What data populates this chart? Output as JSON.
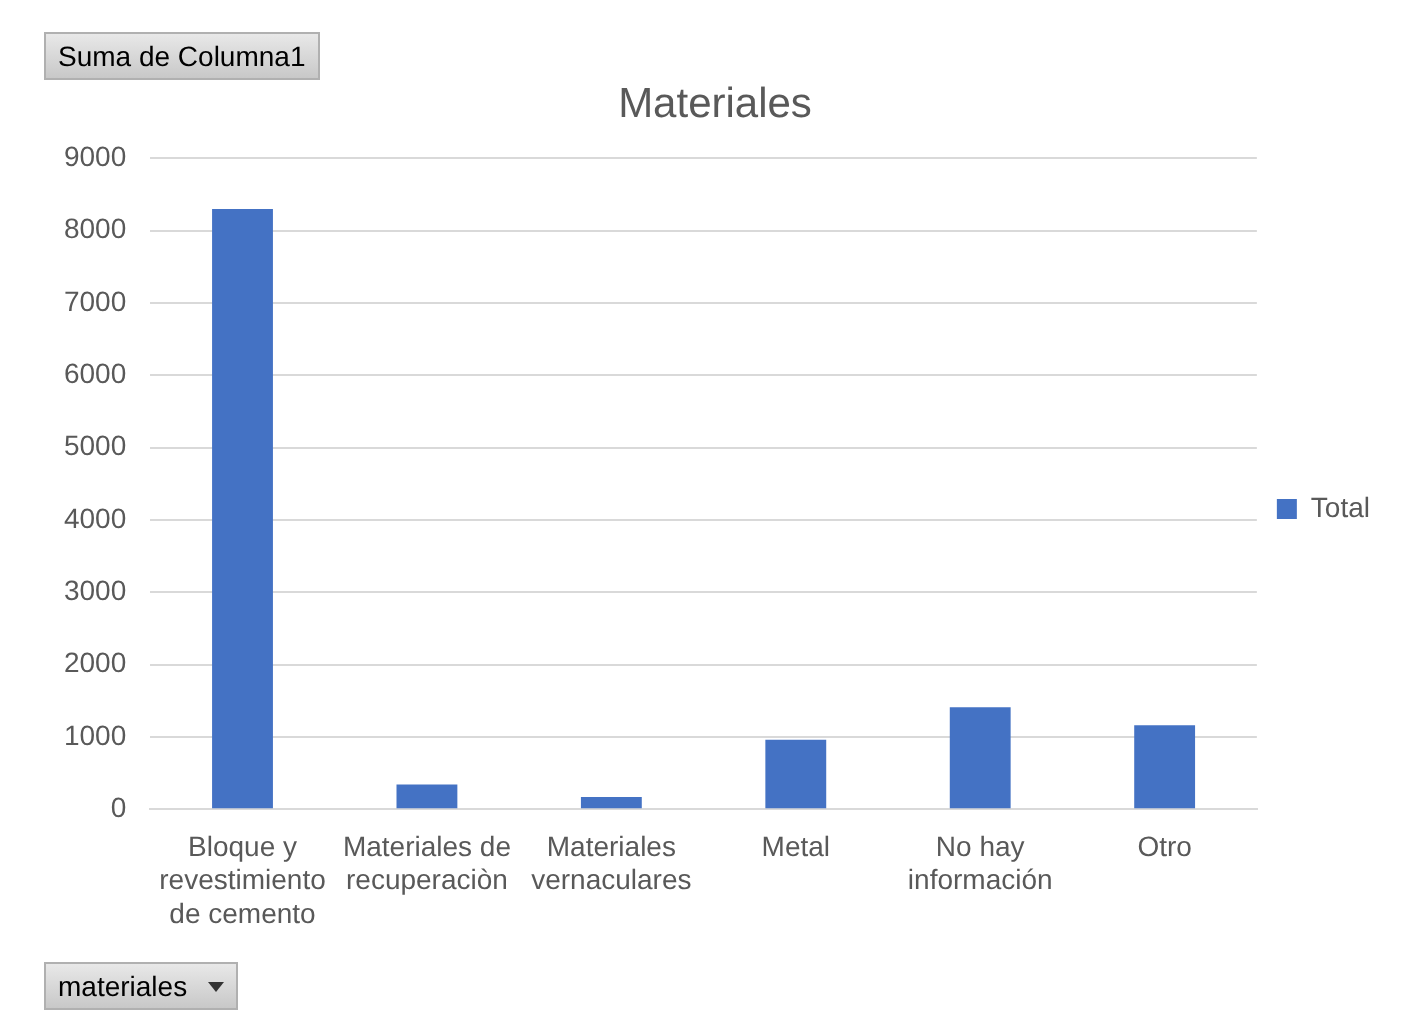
{
  "chart_data": {
    "type": "bar",
    "title": "Materiales",
    "categories": [
      "Bloque y revestimiento de cemento",
      "Materiales de recuperaciòn",
      "Materiales vernaculares",
      "Metal",
      "No hay información",
      "Otro"
    ],
    "series": [
      {
        "name": "Total",
        "color": "#4472c4",
        "values": [
          8300,
          340,
          170,
          960,
          1410,
          1160
        ]
      }
    ],
    "ylim": [
      0,
      9000
    ],
    "yticks": [
      0,
      1000,
      2000,
      3000,
      4000,
      5000,
      6000,
      7000,
      8000,
      9000
    ],
    "grid": "y",
    "legend": "right",
    "annotations": [
      "Suma de Columna1",
      "materiales"
    ]
  }
}
